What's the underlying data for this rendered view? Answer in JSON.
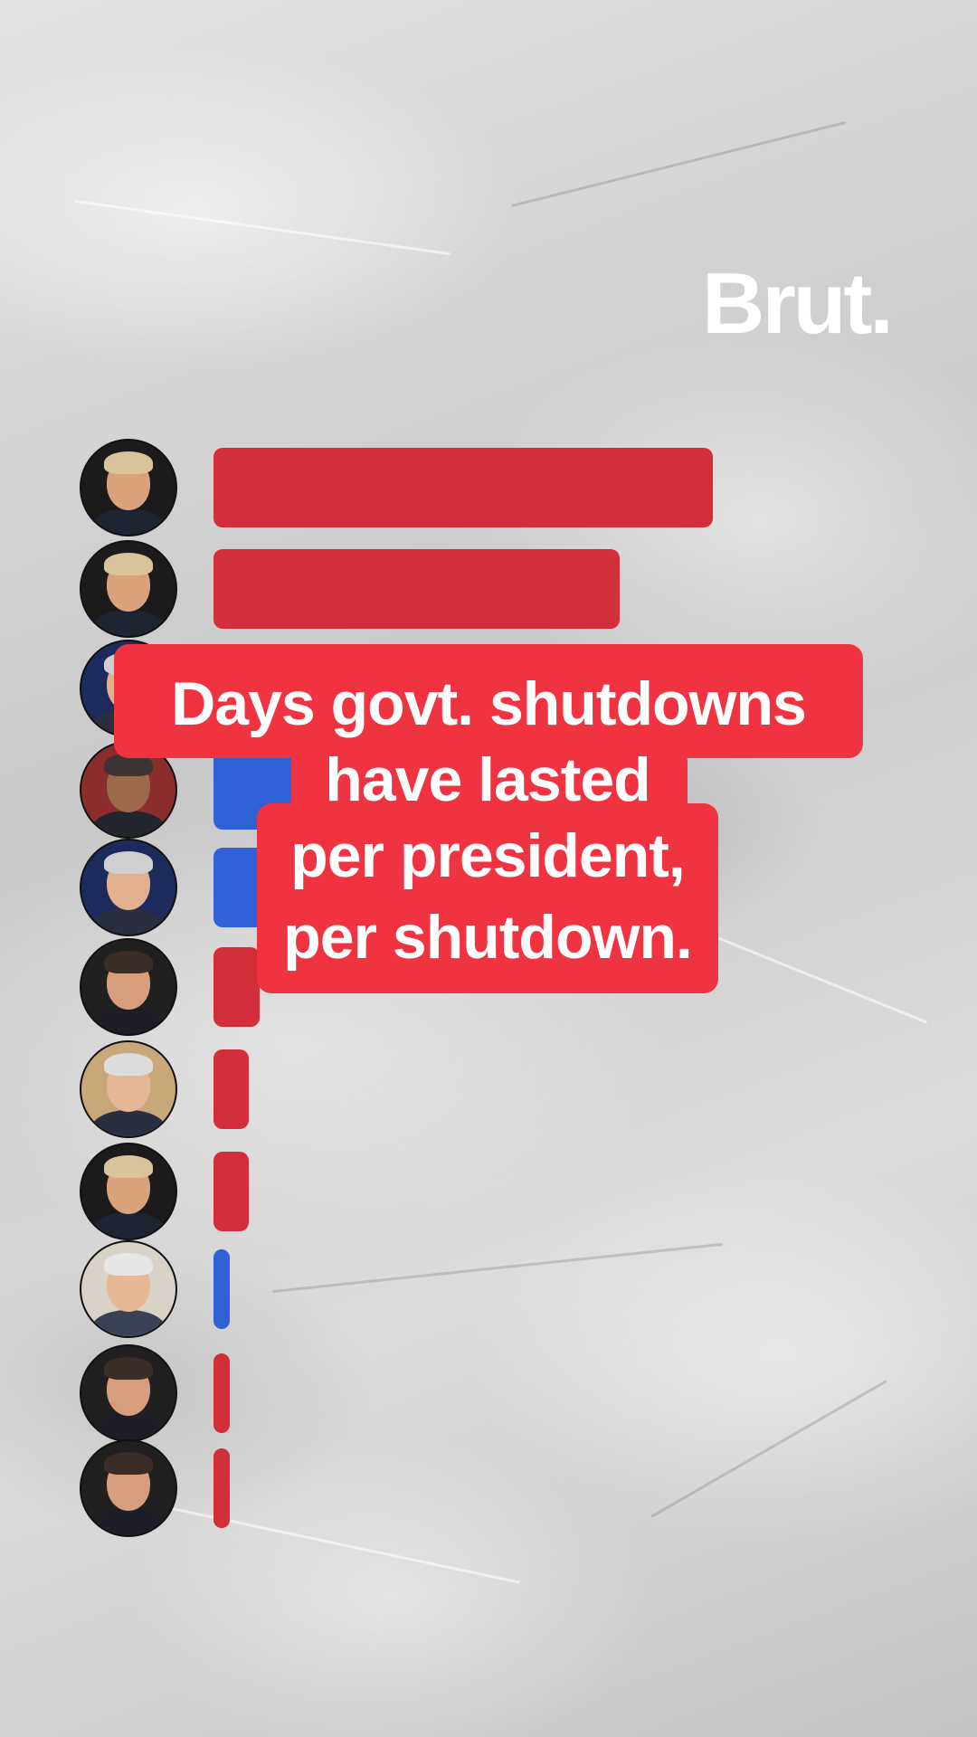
{
  "brand": {
    "logo_text": "Brut."
  },
  "colors": {
    "republican": "#d22f3a",
    "democrat": "#2f62d6",
    "caption_bg": "#ef3340"
  },
  "caption": {
    "lines": [
      "Days govt. shutdowns",
      "have lasted",
      "per president,",
      "per shutdown."
    ]
  },
  "chart_data": {
    "type": "bar",
    "orientation": "horizontal",
    "title": "Days govt. shutdowns have lasted per president, per shutdown.",
    "xlabel": "",
    "ylabel": "",
    "legend": "none",
    "grid": false,
    "bars": [
      {
        "party": "republican",
        "icon": "trump-portrait-icon",
        "value": 43
      },
      {
        "party": "republican",
        "icon": "trump-portrait-icon",
        "value": 35
      },
      {
        "party": "democrat",
        "icon": "clinton-portrait-icon",
        "value": 21
      },
      {
        "party": "democrat",
        "icon": "obama-portrait-icon",
        "value": 16
      },
      {
        "party": "democrat",
        "icon": "clinton-portrait-icon",
        "value": 5
      },
      {
        "party": "republican",
        "icon": "reagan-portrait-icon",
        "value": 4
      },
      {
        "party": "republican",
        "icon": "bush-portrait-icon",
        "value": 3
      },
      {
        "party": "republican",
        "icon": "trump-portrait-icon",
        "value": 3
      },
      {
        "party": "democrat",
        "icon": "carter-portrait-icon",
        "value": 1
      },
      {
        "party": "republican",
        "icon": "reagan-portrait-icon",
        "value": 1
      },
      {
        "party": "republican",
        "icon": "reagan-portrait-icon",
        "value": 1
      }
    ]
  }
}
